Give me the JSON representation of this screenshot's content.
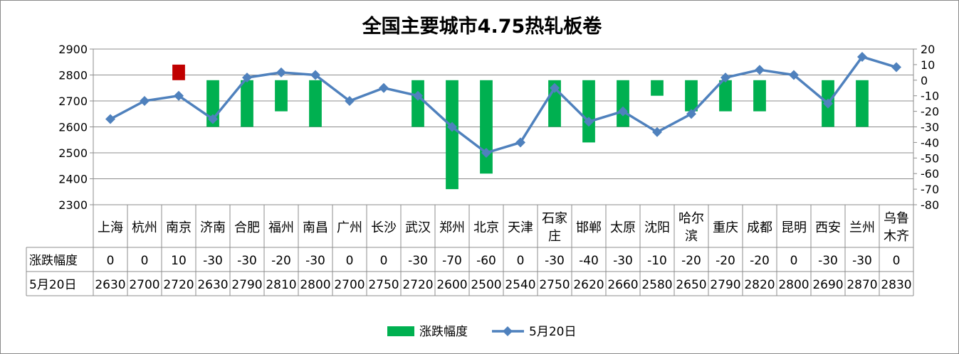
{
  "chart_data": {
    "type": "bar+line",
    "title": "全国主要城市4.75热轧板卷",
    "categories": [
      "上海",
      "杭州",
      "南京",
      "济南",
      "合肥",
      "福州",
      "南昌",
      "广州",
      "长沙",
      "武汉",
      "郑州",
      "北京",
      "天津",
      "石家庄",
      "邯郸",
      "太原",
      "沈阳",
      "哈尔滨",
      "重庆",
      "成都",
      "昆明",
      "西安",
      "兰州",
      "乌鲁木齐"
    ],
    "category_lines": [
      [
        "上海"
      ],
      [
        "杭州"
      ],
      [
        "南京"
      ],
      [
        "济南"
      ],
      [
        "合肥"
      ],
      [
        "福州"
      ],
      [
        "南昌"
      ],
      [
        "广州"
      ],
      [
        "长沙"
      ],
      [
        "武汉"
      ],
      [
        "郑州"
      ],
      [
        "北京"
      ],
      [
        "天津"
      ],
      [
        "石家",
        "庄"
      ],
      [
        "邯郸"
      ],
      [
        "太原"
      ],
      [
        "沈阳"
      ],
      [
        "哈尔",
        "滨"
      ],
      [
        "重庆"
      ],
      [
        "成都"
      ],
      [
        "昆明"
      ],
      [
        "西安"
      ],
      [
        "兰州"
      ],
      [
        "乌鲁",
        "木齐"
      ]
    ],
    "series": [
      {
        "name": "涨跌幅度",
        "type": "bar",
        "axis": "right",
        "values": [
          0,
          0,
          10,
          -30,
          -30,
          -20,
          -30,
          0,
          0,
          -30,
          -70,
          -60,
          0,
          -30,
          -40,
          -30,
          -10,
          -20,
          -20,
          -20,
          0,
          -30,
          -30,
          0
        ],
        "color": "#00b050",
        "positive_color": "#c00000"
      },
      {
        "name": "5月20日",
        "type": "line",
        "axis": "left",
        "values": [
          2630,
          2700,
          2720,
          2630,
          2790,
          2810,
          2800,
          2700,
          2750,
          2720,
          2600,
          2500,
          2540,
          2750,
          2620,
          2660,
          2580,
          2650,
          2790,
          2820,
          2800,
          2690,
          2870,
          2830
        ],
        "color": "#4f81bd"
      }
    ],
    "y_left": {
      "min": 2300,
      "max": 2900,
      "step": 100,
      "ticks": [
        "2900",
        "2800",
        "2700",
        "2600",
        "2500",
        "2400",
        "2300"
      ]
    },
    "y_right": {
      "min": -80,
      "max": 20,
      "step": 10,
      "ticks": [
        "20",
        "10",
        "0",
        "-10",
        "-20",
        "-30",
        "-40",
        "-50",
        "-60",
        "-70",
        "-80"
      ]
    },
    "grid": true,
    "legend": "bottom-center",
    "data_table": true
  }
}
